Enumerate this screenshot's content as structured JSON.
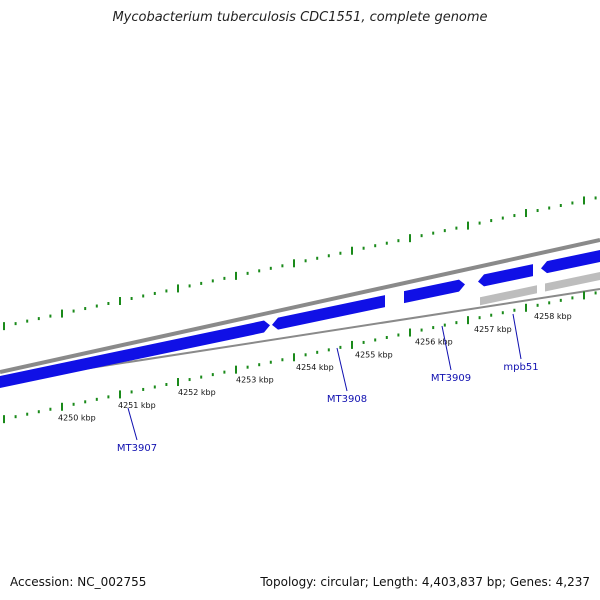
{
  "title": "Mycobacterium tuberculosis CDC1551, complete genome",
  "footer": {
    "accession": "Accession: NC_002755",
    "summary": "Topology: circular; Length: 4,403,837 bp; Genes: 4,237"
  },
  "colors": {
    "backbone": "#8a8a8a",
    "ticks": "#1a8a1a",
    "gene": "#1010e6",
    "pseudo_gene": "#bdbdbd",
    "label": "#1010b0"
  },
  "chart_data": {
    "type": "genome-map",
    "position_labels": [
      "4250 kbp",
      "4251 kbp",
      "4252 kbp",
      "4253 kbp",
      "4254 kbp",
      "4255 kbp",
      "4256 kbp",
      "4257 kbp",
      "4258 kbp"
    ],
    "genes": [
      {
        "label": "MT3907",
        "strand": "+",
        "color": "gene"
      },
      {
        "label": "",
        "strand": "+",
        "color": "gene"
      },
      {
        "label": "MT3908",
        "strand": "-",
        "color": "gene"
      },
      {
        "label": "MT3909",
        "strand": "+",
        "color": "gene"
      },
      {
        "label": "",
        "strand": "-",
        "color": "gene"
      },
      {
        "label": "",
        "strand": "-",
        "color": "gene"
      },
      {
        "label": "mpb51",
        "strand": "+",
        "color": "pseudo_gene"
      },
      {
        "label": "",
        "strand": "-",
        "color": "pseudo_gene"
      }
    ]
  }
}
